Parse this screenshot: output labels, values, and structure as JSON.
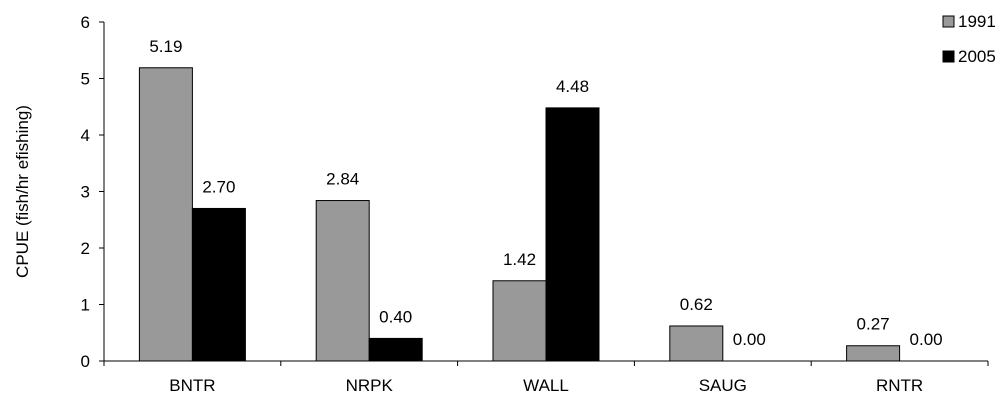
{
  "chart_data": {
    "type": "bar",
    "title": "",
    "xlabel": "",
    "ylabel": "CPUE (fish/hr efishing)",
    "ylim": [
      0,
      6
    ],
    "yticks": [
      0,
      1,
      2,
      3,
      4,
      5,
      6
    ],
    "grid": false,
    "legend_position": "top-right",
    "categories": [
      "BNTR",
      "NRPK",
      "WALL",
      "SAUG",
      "RNTR"
    ],
    "series": [
      {
        "name": "1991",
        "color": "#999999",
        "values": [
          5.19,
          2.84,
          1.42,
          0.62,
          0.27
        ],
        "labels": [
          "5.19",
          "2.84",
          "1.42",
          "0.62",
          "0.27"
        ]
      },
      {
        "name": "2005",
        "color": "#000000",
        "values": [
          2.7,
          0.4,
          4.48,
          0.0,
          0.0
        ],
        "labels": [
          "2.70",
          "0.40",
          "4.48",
          "0.00",
          "0.00"
        ]
      }
    ]
  }
}
